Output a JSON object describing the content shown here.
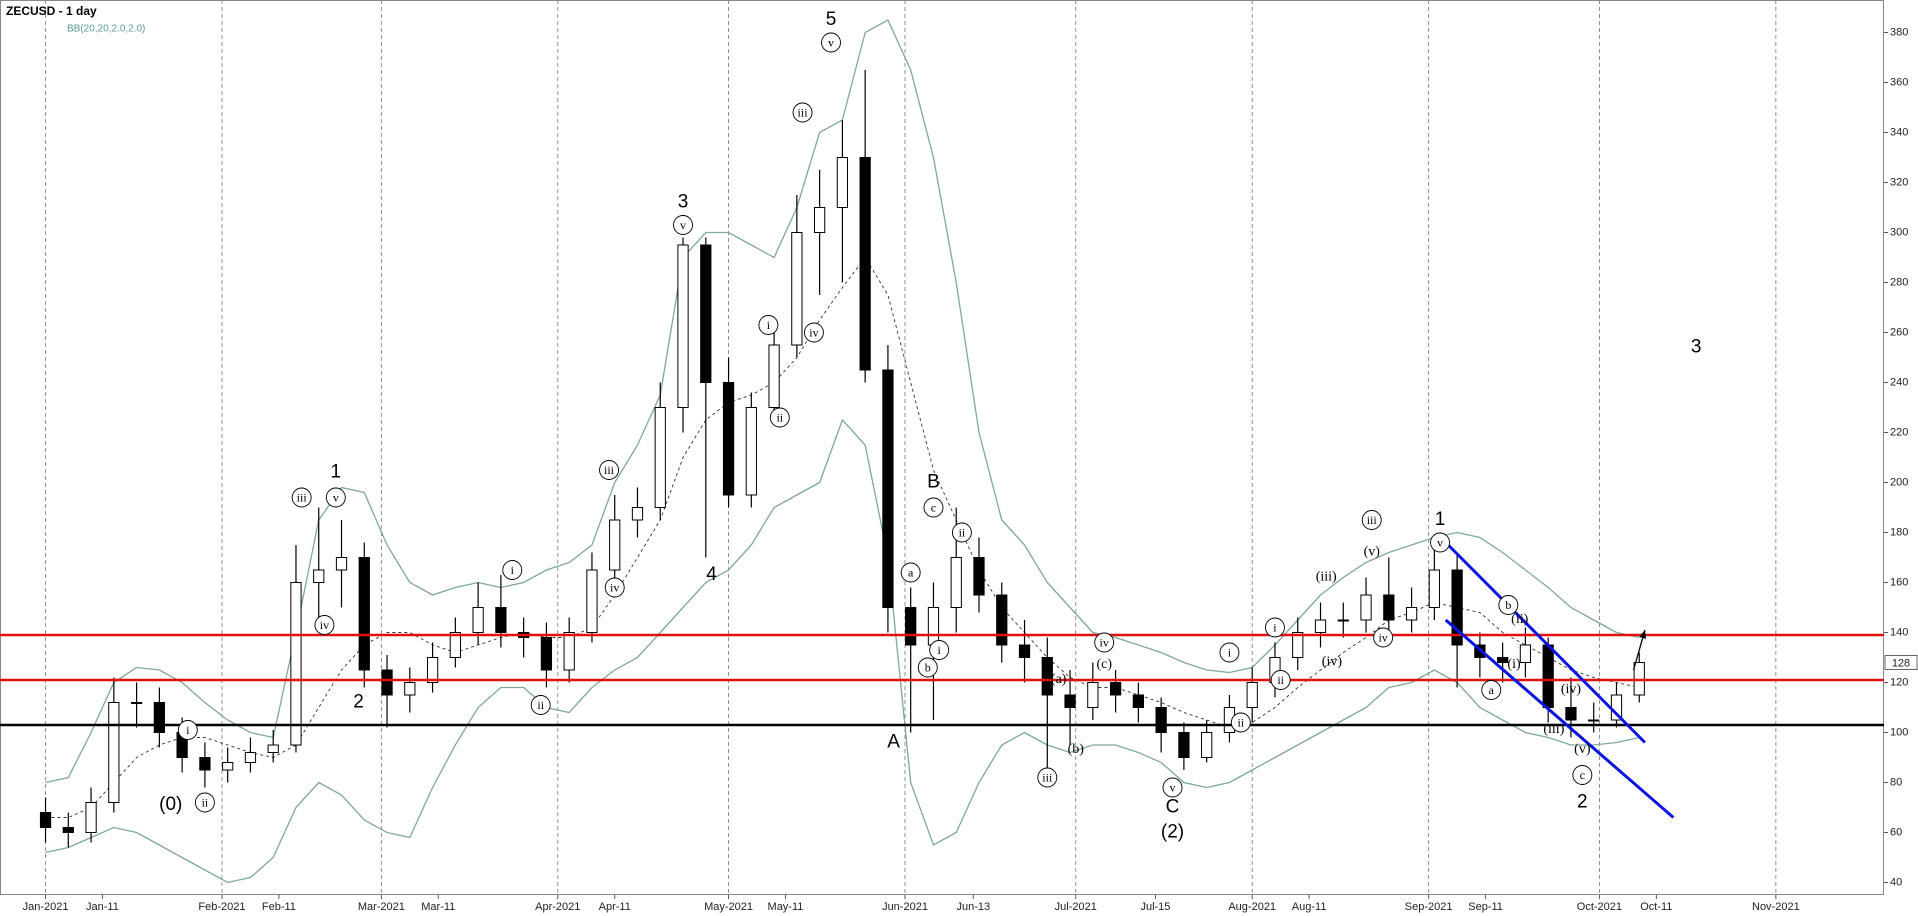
{
  "chart_data": {
    "type": "candlestick",
    "title": "ZECUSD - 1 day",
    "subtitle": "BB(20,20,2.0,2.0)",
    "x": [
      "2021-01-01",
      "2021-01-05",
      "2021-01-09",
      "2021-01-13",
      "2021-01-17",
      "2021-01-21",
      "2021-01-25",
      "2021-01-29",
      "2021-02-02",
      "2021-02-06",
      "2021-02-10",
      "2021-02-14",
      "2021-02-18",
      "2021-02-22",
      "2021-02-26",
      "2021-03-02",
      "2021-03-06",
      "2021-03-10",
      "2021-03-14",
      "2021-03-18",
      "2021-03-22",
      "2021-03-26",
      "2021-03-30",
      "2021-04-03",
      "2021-04-07",
      "2021-04-11",
      "2021-04-15",
      "2021-04-19",
      "2021-04-23",
      "2021-04-27",
      "2021-05-01",
      "2021-05-05",
      "2021-05-09",
      "2021-05-13",
      "2021-05-17",
      "2021-05-21",
      "2021-05-25",
      "2021-05-29",
      "2021-06-02",
      "2021-06-06",
      "2021-06-10",
      "2021-06-14",
      "2021-06-18",
      "2021-06-22",
      "2021-06-26",
      "2021-06-30",
      "2021-07-04",
      "2021-07-08",
      "2021-07-12",
      "2021-07-16",
      "2021-07-20",
      "2021-07-24",
      "2021-07-28",
      "2021-08-01",
      "2021-08-05",
      "2021-08-09",
      "2021-08-13",
      "2021-08-17",
      "2021-08-21",
      "2021-08-25",
      "2021-08-29",
      "2021-09-02",
      "2021-09-06",
      "2021-09-10",
      "2021-09-14",
      "2021-09-18",
      "2021-09-22",
      "2021-09-26",
      "2021-09-30",
      "2021-10-04",
      "2021-10-08"
    ],
    "open": [
      68,
      62,
      60,
      72,
      112,
      112,
      100,
      90,
      85,
      88,
      92,
      95,
      160,
      165,
      170,
      125,
      115,
      120,
      130,
      140,
      150,
      140,
      138,
      125,
      140,
      165,
      185,
      190,
      230,
      295,
      240,
      195,
      230,
      255,
      300,
      310,
      330,
      245,
      150,
      135,
      150,
      170,
      155,
      135,
      130,
      115,
      110,
      120,
      115,
      110,
      100,
      90,
      100,
      110,
      120,
      130,
      140,
      145,
      145,
      155,
      145,
      150,
      165,
      135,
      130,
      128,
      135,
      110,
      105,
      105,
      115
    ],
    "high": [
      74,
      68,
      78,
      122,
      120,
      118,
      106,
      96,
      94,
      98,
      101,
      175,
      190,
      185,
      176,
      131,
      126,
      136,
      146,
      160,
      163,
      146,
      144,
      146,
      172,
      195,
      198,
      240,
      298,
      298,
      250,
      236,
      262,
      315,
      325,
      345,
      365,
      255,
      158,
      160,
      190,
      178,
      160,
      145,
      138,
      125,
      128,
      125,
      120,
      114,
      104,
      105,
      115,
      126,
      136,
      146,
      152,
      152,
      162,
      170,
      158,
      178,
      172,
      140,
      136,
      142,
      138,
      122,
      112,
      120,
      132
    ],
    "low": [
      56,
      54,
      56,
      68,
      102,
      94,
      84,
      78,
      80,
      84,
      88,
      92,
      140,
      150,
      118,
      102,
      108,
      116,
      126,
      135,
      134,
      130,
      118,
      120,
      136,
      160,
      178,
      185,
      220,
      170,
      190,
      190,
      225,
      250,
      275,
      280,
      240,
      140,
      100,
      105,
      140,
      148,
      128,
      120,
      78,
      95,
      105,
      108,
      104,
      92,
      85,
      88,
      96,
      104,
      114,
      125,
      134,
      138,
      140,
      138,
      140,
      145,
      118,
      122,
      120,
      122,
      104,
      98,
      100,
      102,
      112
    ],
    "close": [
      62,
      60,
      72,
      112,
      112,
      100,
      90,
      85,
      88,
      92,
      95,
      160,
      165,
      170,
      125,
      115,
      120,
      130,
      140,
      150,
      140,
      138,
      125,
      140,
      165,
      185,
      190,
      230,
      295,
      240,
      195,
      230,
      255,
      300,
      310,
      330,
      245,
      150,
      135,
      150,
      170,
      155,
      135,
      130,
      115,
      110,
      120,
      115,
      110,
      100,
      90,
      100,
      110,
      120,
      130,
      140,
      145,
      145,
      155,
      145,
      150,
      165,
      135,
      130,
      128,
      135,
      110,
      105,
      105,
      115,
      128
    ],
    "up_color": "#ffffff",
    "down_color": "#000000",
    "bands": {
      "color": "#7fa89c",
      "middle_color": "#333333",
      "upper": [
        80,
        82,
        100,
        120,
        126,
        125,
        120,
        112,
        105,
        100,
        98,
        140,
        185,
        198,
        196,
        175,
        160,
        155,
        158,
        160,
        158,
        160,
        165,
        168,
        175,
        200,
        215,
        235,
        290,
        300,
        300,
        295,
        290,
        310,
        340,
        345,
        380,
        385,
        365,
        330,
        280,
        220,
        185,
        175,
        160,
        150,
        140,
        138,
        135,
        132,
        128,
        125,
        124,
        126,
        135,
        145,
        155,
        162,
        168,
        172,
        175,
        178,
        180,
        178,
        172,
        165,
        158,
        150,
        145,
        140,
        138
      ],
      "middle": [
        66,
        66,
        70,
        80,
        90,
        95,
        98,
        98,
        95,
        92,
        90,
        95,
        110,
        125,
        135,
        140,
        140,
        135,
        132,
        135,
        138,
        140,
        138,
        138,
        142,
        155,
        170,
        185,
        210,
        225,
        232,
        235,
        240,
        250,
        265,
        278,
        290,
        275,
        240,
        205,
        185,
        165,
        150,
        140,
        130,
        122,
        118,
        118,
        115,
        112,
        108,
        105,
        102,
        104,
        110,
        118,
        125,
        132,
        138,
        145,
        148,
        152,
        150,
        148,
        140,
        135,
        130,
        125,
        122,
        120,
        118
      ],
      "lower": [
        52,
        54,
        58,
        62,
        60,
        55,
        50,
        45,
        40,
        42,
        50,
        70,
        80,
        75,
        65,
        60,
        58,
        78,
        95,
        110,
        118,
        118,
        110,
        108,
        118,
        125,
        130,
        140,
        150,
        160,
        165,
        175,
        190,
        195,
        200,
        225,
        215,
        170,
        80,
        55,
        60,
        80,
        95,
        100,
        95,
        92,
        95,
        95,
        92,
        88,
        80,
        78,
        80,
        85,
        90,
        95,
        100,
        105,
        110,
        118,
        120,
        125,
        120,
        110,
        105,
        100,
        98,
        95,
        95,
        96,
        98
      ]
    },
    "levels": [
      {
        "value": 139,
        "color": "#e01010"
      },
      {
        "value": 121,
        "color": "#e01010"
      },
      {
        "value": 103,
        "color": "#000000"
      }
    ],
    "channels": [
      {
        "x": [
          "2021-09-04",
          "2021-10-09"
        ],
        "y": [
          176,
          96
        ],
        "color": "#0a14e0"
      },
      {
        "x": [
          "2021-09-04",
          "2021-10-14"
        ],
        "y": [
          145,
          66
        ],
        "color": "#0a14e0"
      }
    ],
    "arrow": {
      "x": [
        "2021-10-07",
        "2021-10-09"
      ],
      "y": [
        125,
        141
      ]
    },
    "last_price": 128,
    "labels": [
      {
        "text": "(0)",
        "x": "2021-01-23",
        "y": 71,
        "circled": false
      },
      {
        "text": "i",
        "x": "2021-01-26",
        "y": 101,
        "circled": true
      },
      {
        "text": "ii",
        "x": "2021-01-29",
        "y": 72,
        "circled": true
      },
      {
        "text": "iii",
        "x": "2021-02-15",
        "y": 194,
        "circled": true
      },
      {
        "text": "iv",
        "x": "2021-02-19",
        "y": 143,
        "circled": true
      },
      {
        "text": "v",
        "x": "2021-02-21",
        "y": 194,
        "circled": true
      },
      {
        "text": "1",
        "x": "2021-02-21",
        "y": 204,
        "circled": false
      },
      {
        "text": "2",
        "x": "2021-02-25",
        "y": 112,
        "circled": false
      },
      {
        "text": "i",
        "x": "2021-03-24",
        "y": 165,
        "circled": true
      },
      {
        "text": "ii",
        "x": "2021-03-29",
        "y": 111,
        "circled": true
      },
      {
        "text": "iii",
        "x": "2021-04-10",
        "y": 205,
        "circled": true
      },
      {
        "text": "iv",
        "x": "2021-04-11",
        "y": 158,
        "circled": true
      },
      {
        "text": "3",
        "x": "2021-04-23",
        "y": 312,
        "circled": false
      },
      {
        "text": "v",
        "x": "2021-04-23",
        "y": 303,
        "circled": true
      },
      {
        "text": "4",
        "x": "2021-04-28",
        "y": 163,
        "circled": false
      },
      {
        "text": "i",
        "x": "2021-05-08",
        "y": 263,
        "circled": true
      },
      {
        "text": "ii",
        "x": "2021-05-10",
        "y": 226,
        "circled": true
      },
      {
        "text": "iii",
        "x": "2021-05-14",
        "y": 348,
        "circled": true
      },
      {
        "text": "iv",
        "x": "2021-05-16",
        "y": 260,
        "circled": true
      },
      {
        "text": "v",
        "x": "2021-05-19",
        "y": 376,
        "circled": true
      },
      {
        "text": "5",
        "x": "2021-05-19",
        "y": 385,
        "circled": false
      },
      {
        "text": "A",
        "x": "2021-05-30",
        "y": 96,
        "circled": false
      },
      {
        "text": "a",
        "x": "2021-06-02",
        "y": 164,
        "circled": true
      },
      {
        "text": "b",
        "x": "2021-06-05",
        "y": 126,
        "circled": true
      },
      {
        "text": "i",
        "x": "2021-06-07",
        "y": 133,
        "circled": true
      },
      {
        "text": "c",
        "x": "2021-06-06",
        "y": 190,
        "circled": true
      },
      {
        "text": "B",
        "x": "2021-06-06",
        "y": 200,
        "circled": false
      },
      {
        "text": "ii",
        "x": "2021-06-11",
        "y": 180,
        "circled": true
      },
      {
        "text": "iii",
        "x": "2021-06-26",
        "y": 82,
        "circled": true
      },
      {
        "text": "(a)",
        "x": "2021-06-28",
        "y": 121,
        "circled": false
      },
      {
        "text": "(b)",
        "x": "2021-07-01",
        "y": 93,
        "circled": false
      },
      {
        "text": "(c)",
        "x": "2021-07-06",
        "y": 127,
        "circled": false
      },
      {
        "text": "iv",
        "x": "2021-07-06",
        "y": 136,
        "circled": true
      },
      {
        "text": "v",
        "x": "2021-07-18",
        "y": 78,
        "circled": true
      },
      {
        "text": "C",
        "x": "2021-07-18",
        "y": 70,
        "circled": false
      },
      {
        "text": "(2)",
        "x": "2021-07-18",
        "y": 60,
        "circled": false
      },
      {
        "text": "i",
        "x": "2021-07-28",
        "y": 132,
        "circled": true
      },
      {
        "text": "ii",
        "x": "2021-07-30",
        "y": 104,
        "circled": true
      },
      {
        "text": "i",
        "x": "2021-08-05",
        "y": 142,
        "circled": true
      },
      {
        "text": "ii",
        "x": "2021-08-06",
        "y": 121,
        "circled": true
      },
      {
        "text": "(iii)",
        "x": "2021-08-14",
        "y": 162,
        "circled": false
      },
      {
        "text": "(iv)",
        "x": "2021-08-15",
        "y": 128,
        "circled": false
      },
      {
        "text": "iii",
        "x": "2021-08-22",
        "y": 185,
        "circled": true
      },
      {
        "text": "(v)",
        "x": "2021-08-22",
        "y": 172,
        "circled": false
      },
      {
        "text": "iv",
        "x": "2021-08-24",
        "y": 138,
        "circled": true
      },
      {
        "text": "1",
        "x": "2021-09-03",
        "y": 185,
        "circled": false
      },
      {
        "text": "v",
        "x": "2021-09-03",
        "y": 176,
        "circled": true
      },
      {
        "text": "b",
        "x": "2021-09-15",
        "y": 151,
        "circled": true
      },
      {
        "text": "(ii)",
        "x": "2021-09-17",
        "y": 145,
        "circled": false
      },
      {
        "text": "(i)",
        "x": "2021-09-16",
        "y": 127,
        "circled": false
      },
      {
        "text": "a",
        "x": "2021-09-12",
        "y": 117,
        "circled": true
      },
      {
        "text": "(iv)",
        "x": "2021-09-26",
        "y": 117,
        "circled": false
      },
      {
        "text": "(iii)",
        "x": "2021-09-23",
        "y": 101,
        "circled": false
      },
      {
        "text": "(v)",
        "x": "2021-09-28",
        "y": 93,
        "circled": false
      },
      {
        "text": "c",
        "x": "2021-09-28",
        "y": 83,
        "circled": true
      },
      {
        "text": "2",
        "x": "2021-09-28",
        "y": 72,
        "circled": false
      },
      {
        "text": "3",
        "x": "2021-10-18",
        "y": 254,
        "circled": false
      }
    ],
    "xlim": [
      "2020-12-24",
      "2021-11-20"
    ],
    "xticks": [
      {
        "value": "2021-01-01",
        "label": "Jan-2021"
      },
      {
        "value": "2021-01-11",
        "label": "Jan-11"
      },
      {
        "value": "2021-02-01",
        "label": "Feb-2021"
      },
      {
        "value": "2021-02-11",
        "label": "Feb-11"
      },
      {
        "value": "2021-03-01",
        "label": "Mar-2021"
      },
      {
        "value": "2021-03-11",
        "label": "Mar-11"
      },
      {
        "value": "2021-04-01",
        "label": "Apr-2021"
      },
      {
        "value": "2021-04-11",
        "label": "Apr-11"
      },
      {
        "value": "2021-05-01",
        "label": "May-2021"
      },
      {
        "value": "2021-05-11",
        "label": "May-11"
      },
      {
        "value": "2021-06-01",
        "label": "Jun-2021"
      },
      {
        "value": "2021-06-13",
        "label": "Jun-13"
      },
      {
        "value": "2021-07-01",
        "label": "Jul-2021"
      },
      {
        "value": "2021-07-15",
        "label": "Jul-15"
      },
      {
        "value": "2021-08-01",
        "label": "Aug-2021"
      },
      {
        "value": "2021-08-11",
        "label": "Aug-11"
      },
      {
        "value": "2021-09-01",
        "label": "Sep-2021"
      },
      {
        "value": "2021-09-11",
        "label": "Sep-11"
      },
      {
        "value": "2021-10-01",
        "label": "Oct-2021"
      },
      {
        "value": "2021-10-11",
        "label": "Oct-11"
      },
      {
        "value": "2021-11-01",
        "label": "Nov-2021"
      }
    ],
    "ylim": [
      35,
      393
    ],
    "yticks": [
      40,
      60,
      80,
      100,
      120,
      140,
      160,
      180,
      200,
      220,
      240,
      260,
      280,
      300,
      320,
      340,
      360,
      380
    ]
  }
}
